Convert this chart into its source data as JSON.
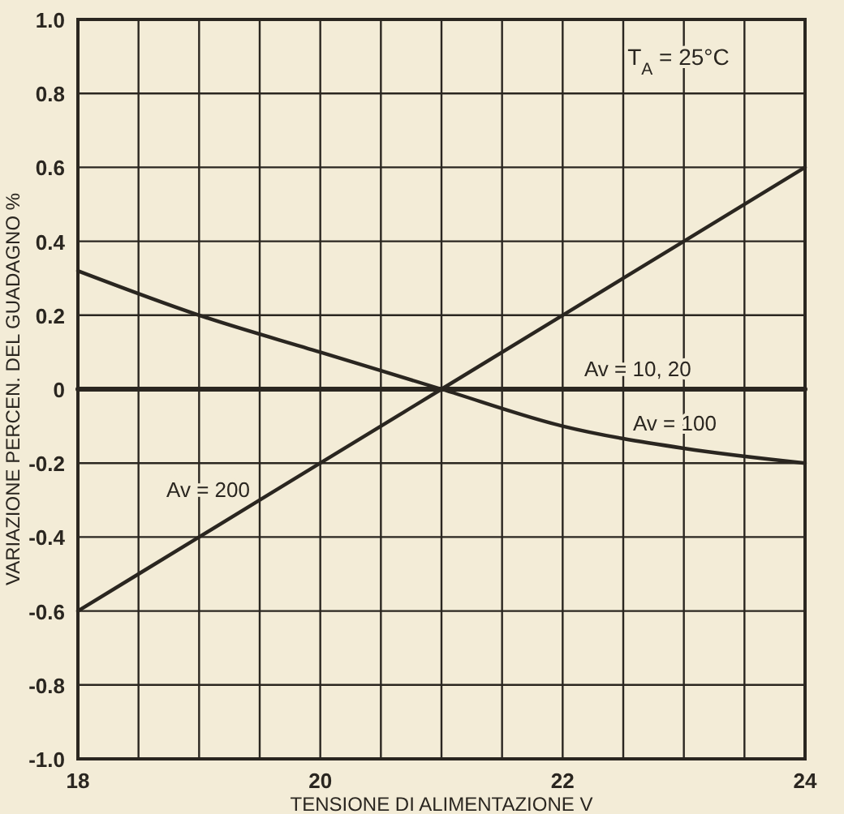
{
  "chart_data": {
    "type": "line",
    "xlabel": "TENSIONE DI ALIMENTAZIONE V",
    "ylabel": "VARIAZIONE PERCEN. DEL GUADAGNO %",
    "x": [
      18,
      19,
      20,
      21,
      22,
      23,
      24
    ],
    "series": [
      {
        "name": "Av = 10, 20",
        "color": "#2a2620",
        "values": [
          0,
          0,
          0,
          0,
          0,
          0,
          0
        ]
      },
      {
        "name": "Av = 100",
        "color": "#2a2620",
        "values": [
          0.32,
          0.2,
          0.1,
          0,
          -0.1,
          -0.16,
          -0.2
        ]
      },
      {
        "name": "Av = 200",
        "color": "#2a2620",
        "values": [
          -0.6,
          -0.4,
          -0.2,
          0,
          0.2,
          0.4,
          0.6
        ]
      }
    ],
    "xlim": [
      18,
      24
    ],
    "xticks": [
      18,
      {
        "value": 18.5,
        "label": null
      },
      {
        "value": 19,
        "label": null
      },
      {
        "value": 19.5,
        "label": null
      },
      20,
      {
        "value": 20.5,
        "label": null
      },
      {
        "value": 21,
        "label": null
      },
      {
        "value": 21.5,
        "label": null
      },
      22,
      {
        "value": 22.5,
        "label": null
      },
      {
        "value": 23,
        "label": null
      },
      {
        "value": 23.5,
        "label": null
      },
      24
    ],
    "ylim": [
      -1,
      1
    ],
    "yticks": [
      {
        "value": -1,
        "label": "-1.0"
      },
      -0.8,
      -0.6,
      -0.4,
      -0.2,
      0,
      0.2,
      0.4,
      0.6,
      0.8,
      {
        "value": 1,
        "label": "1.0"
      }
    ],
    "grid": true,
    "marker": "none",
    "line_style": "solid",
    "annotations": [
      "T$_{A}$ = 25°C"
    ]
  }
}
